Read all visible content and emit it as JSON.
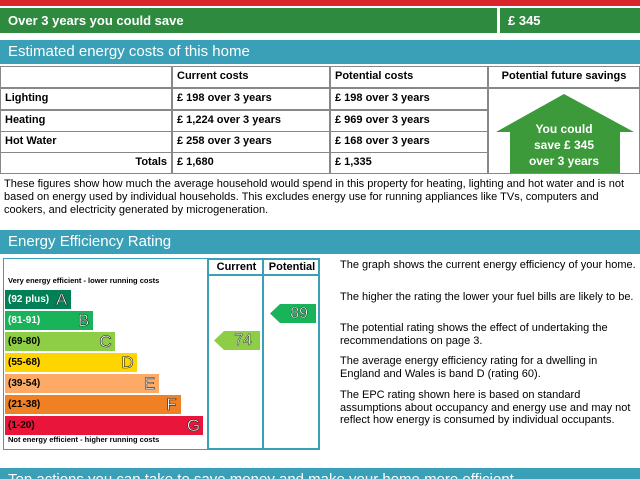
{
  "savings_banner": {
    "label": "Over 3 years you could save",
    "amount": "£ 345"
  },
  "costs": {
    "title": "Estimated energy costs of this home",
    "headers": [
      "Current costs",
      "Potential costs",
      "Potential future savings"
    ],
    "rows": [
      [
        "Lighting",
        "£ 198 over 3 years",
        "£ 198 over 3 years"
      ],
      [
        "Heating",
        "£ 1,224 over 3 years",
        "£ 969 over 3 years"
      ],
      [
        "Hot Water",
        "£ 258 over 3 years",
        "£ 168 over 3 years"
      ]
    ],
    "totals": [
      "Totals",
      "£ 1,680",
      "£ 1,335"
    ],
    "savings_badge": [
      "You could",
      "save £ 345",
      "over 3 years"
    ]
  },
  "costs_note": "These figures show how much the average household would spend in this property for heating, lighting and hot water and is not based on energy used by individual households. This excludes energy use for running appliances like TVs, computers and cookers, and electricity generated by microgeneration.",
  "rating": {
    "title": "Energy Efficiency Rating",
    "columns": [
      "Current",
      "Potential"
    ],
    "top_label": "Very energy efficient - lower running costs",
    "bottom_label": "Not energy efficient - higher running costs",
    "bands": [
      {
        "range": "(92 plus)",
        "letter": "A",
        "color": "#008054"
      },
      {
        "range": "(81-91)",
        "letter": "B",
        "color": "#19b459"
      },
      {
        "range": "(69-80)",
        "letter": "C",
        "color": "#8dce46"
      },
      {
        "range": "(55-68)",
        "letter": "D",
        "color": "#ffd500"
      },
      {
        "range": "(39-54)",
        "letter": "E",
        "color": "#fcaa65"
      },
      {
        "range": "(21-38)",
        "letter": "F",
        "color": "#ef8023"
      },
      {
        "range": "(1-20)",
        "letter": "G",
        "color": "#e9153b"
      }
    ],
    "current": {
      "value": 74,
      "color": "#8dce46"
    },
    "potential": {
      "value": 89,
      "color": "#19b459"
    },
    "notes": [
      "The graph shows the current energy efficiency of your home.",
      "The higher the rating the lower your fuel bills are likely to be.",
      "The potential rating shows the effect of undertaking the recommendations on page 3.",
      "The average energy efficiency rating for a dwelling in England and Wales is band D (rating 60).",
      "The EPC rating shown here is based on standard assumptions about occupancy and energy use and may not reflect how energy is consumed by individual occupants."
    ]
  },
  "next_header": "Top actions you can take to save money and make your home more efficient"
}
